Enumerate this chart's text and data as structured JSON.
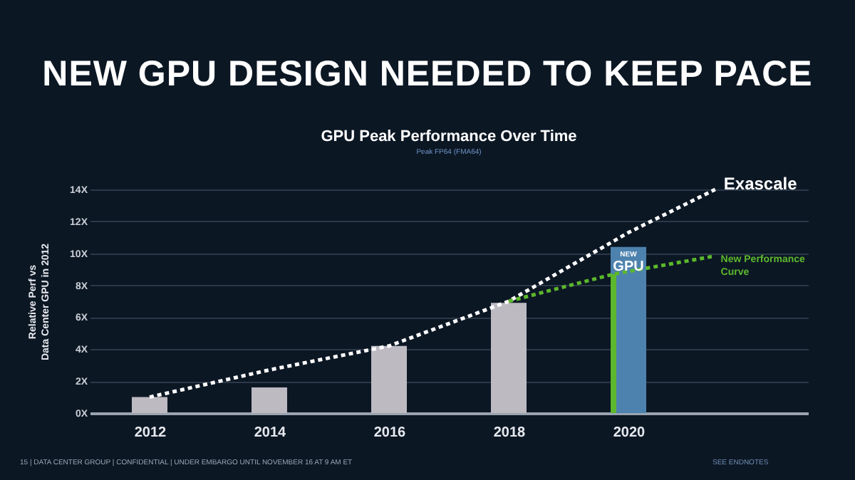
{
  "chart_data": {
    "type": "bar",
    "title": "NEW GPU DESIGN NEEDED TO KEEP PACE",
    "subtitle": "GPU Peak Performance Over Time",
    "ylabel": "Relative Perf vs\nData Center GPU in 2012",
    "xlim": [
      2011,
      2023
    ],
    "xticks": [
      2012,
      2014,
      2016,
      2018,
      2020
    ],
    "ylim": [
      0,
      14
    ],
    "yticks": [
      {
        "value": 0,
        "label": "0X"
      },
      {
        "value": 2,
        "label": "2X"
      },
      {
        "value": 4,
        "label": "4X"
      },
      {
        "value": 6,
        "label": "6X"
      },
      {
        "value": 8,
        "label": "8X"
      },
      {
        "value": 10,
        "label": "10X"
      },
      {
        "value": 12,
        "label": "12X"
      },
      {
        "value": 14,
        "label": "14X"
      }
    ],
    "grid": "y",
    "legend": "top right",
    "marker": "none",
    "series": [
      {
        "x": [
          2012,
          2014,
          2016,
          2018,
          2020
        ],
        "values": [
          1.0,
          1.6,
          4.2,
          6.9,
          10.4
        ],
        "colors": [
          "#bdbac2",
          "#bdbac2",
          "#bdbac2",
          "#bdbac2",
          "#4d82ae"
        ]
      },
      {
        "x": [
          2019.75
        ],
        "values": [
          8.7
        ],
        "color": "#5cb82c"
      },
      {
        "type": "line",
        "name": "Exascale",
        "x": [
          2012,
          2014,
          2016,
          2018,
          2020,
          2021.45
        ],
        "values": [
          1.0,
          2.7,
          4.2,
          7.0,
          11.3,
          14.0
        ],
        "color": "#ffffff",
        "line_style": "dotted"
      },
      {
        "type": "line",
        "name": "New Performance\nCurve",
        "x": [
          2018,
          2019.75,
          2021.4
        ],
        "values": [
          7.0,
          8.7,
          9.8
        ],
        "color": "#5cb82c",
        "line_style": "dotted"
      }
    ],
    "annotations": [
      "Peak FP64 (FMA64)",
      {
        "text": "NEW",
        "x": 2020,
        "y": 10.0
      },
      {
        "text": "GPU",
        "x": 2020,
        "y": 9.2
      },
      "15 | DATA CENTER GROUP | CONFIDENTIAL | UNDER EMBARGO UNTIL NOVEMBER 16 AT 9 AM ET",
      "SEE ENDNOTES"
    ]
  }
}
